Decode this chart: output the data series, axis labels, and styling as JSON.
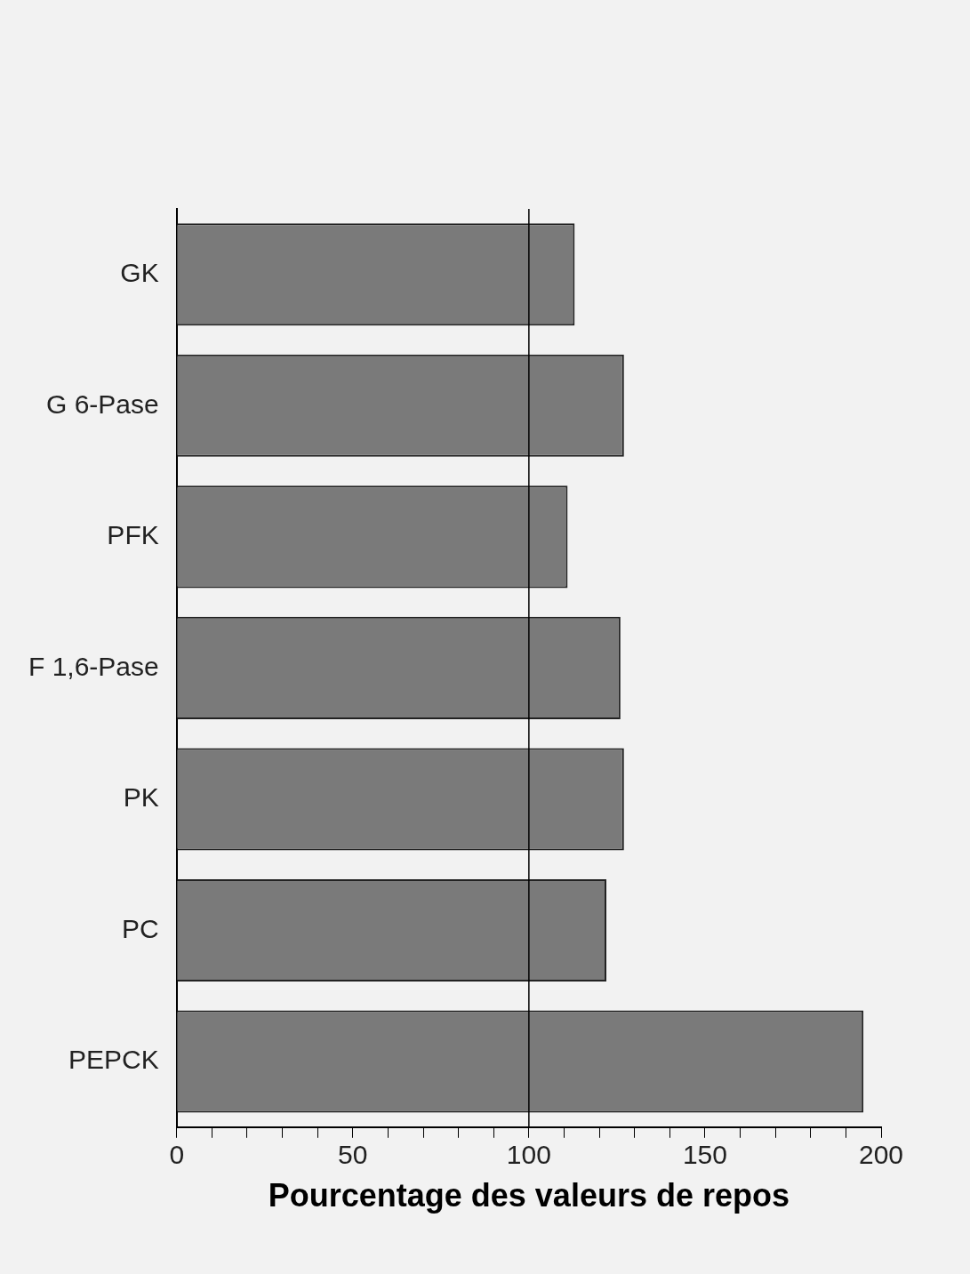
{
  "chart_data": {
    "type": "bar",
    "orientation": "horizontal",
    "categories": [
      "GK",
      "G 6-Pase",
      "PFK",
      "F 1,6-Pase",
      "PK",
      "PC",
      "PEPCK"
    ],
    "values": [
      113,
      127,
      111,
      126,
      127,
      122,
      195
    ],
    "color": "#7a7a7a",
    "xlabel": "Pourcentage des valeurs de repos",
    "xlim": [
      0,
      200
    ],
    "xticks": [
      0,
      {
        "value": 10,
        "label": null
      },
      {
        "value": 20,
        "label": null
      },
      {
        "value": 30,
        "label": null
      },
      {
        "value": 40,
        "label": null
      },
      50,
      {
        "value": 60,
        "label": null
      },
      {
        "value": 70,
        "label": null
      },
      {
        "value": 80,
        "label": null
      },
      {
        "value": 90,
        "label": null
      },
      100,
      {
        "value": 110,
        "label": null
      },
      {
        "value": 120,
        "label": null
      },
      {
        "value": 130,
        "label": null
      },
      {
        "value": 140,
        "label": null
      },
      150,
      {
        "value": 160,
        "label": null
      },
      {
        "value": 170,
        "label": null
      },
      {
        "value": 180,
        "label": null
      },
      {
        "value": 190,
        "label": null
      },
      200
    ],
    "ref_lines": [
      {
        "axis": "x",
        "value": 100,
        "color": "#000000"
      }
    ]
  }
}
